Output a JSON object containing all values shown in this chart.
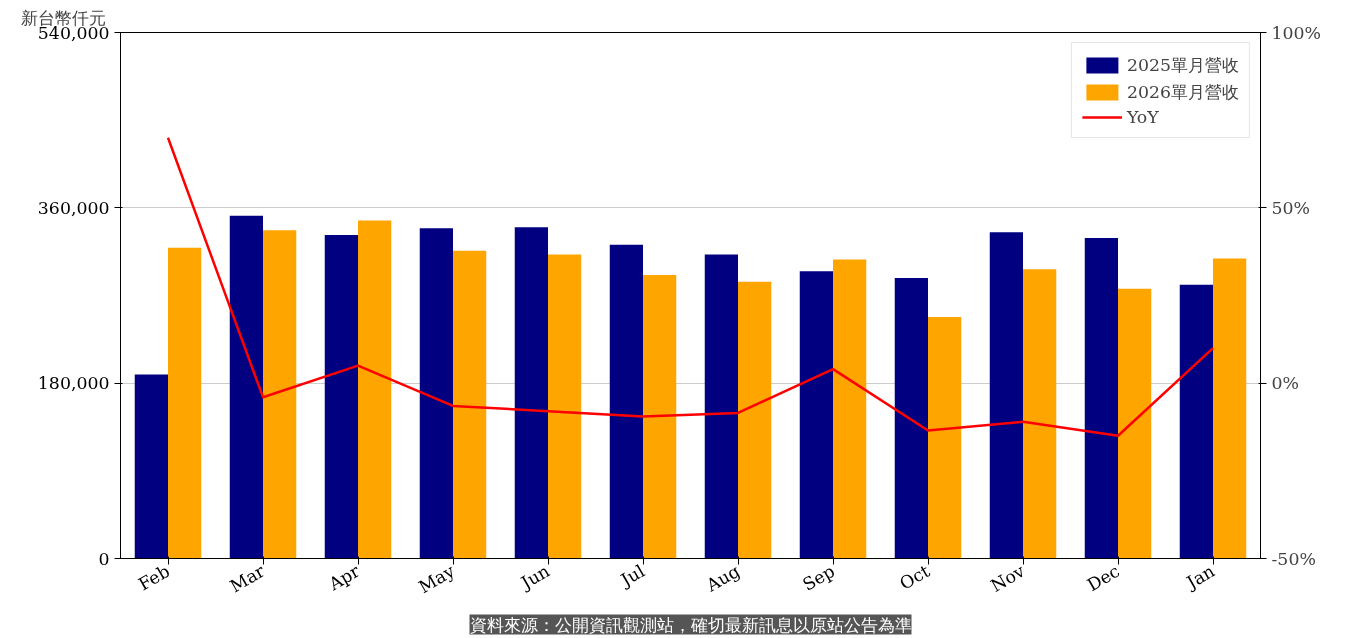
{
  "chart_data": {
    "type": "bar",
    "ylabel": "新台幣仟元",
    "categories": [
      "Feb",
      "Mar",
      "Apr",
      "May",
      "Jun",
      "Jul",
      "Aug",
      "Sep",
      "Oct",
      "Nov",
      "Dec",
      "Jan"
    ],
    "series": [
      {
        "name": "2025單月營收",
        "color": "#000080",
        "values": [
          189000,
          352000,
          332000,
          339000,
          340000,
          322000,
          312000,
          295000,
          288000,
          335000,
          329000,
          281000
        ]
      },
      {
        "name": "2026單月營收",
        "color": "#ffa500",
        "values": [
          319000,
          337000,
          347000,
          316000,
          312000,
          291000,
          284000,
          307000,
          248000,
          297000,
          277000,
          308000
        ]
      },
      {
        "name": "YoY",
        "type": "line",
        "axis": "y2",
        "color": "#ff0000",
        "values": [
          70,
          -4,
          5,
          -6.5,
          -8,
          -9.5,
          -8.5,
          4,
          -13.5,
          -11,
          -15,
          10
        ]
      }
    ],
    "ylim": [
      0,
      540000
    ],
    "yticks": [
      {
        "value": 0,
        "label": "0"
      },
      {
        "value": 180000,
        "label": "180,000"
      },
      {
        "value": 360000,
        "label": "360,000"
      },
      {
        "value": 540000,
        "label": "540,000"
      }
    ],
    "y2lim": [
      -50,
      100
    ],
    "y2ticks": [
      {
        "value": -50,
        "label": "-50%"
      },
      {
        "value": 0,
        "label": "0%"
      },
      {
        "value": 50,
        "label": "50%"
      },
      {
        "value": 100,
        "label": "100%"
      }
    ],
    "grid": "y",
    "legend": "top right",
    "annotations": [
      "資料來源：公開資訊觀測站，確切最新訊息以原站公告為準"
    ]
  }
}
